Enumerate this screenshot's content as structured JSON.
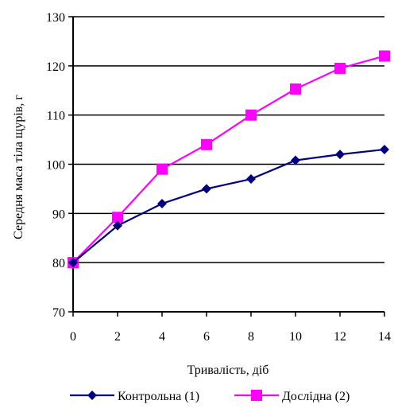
{
  "chart_data": {
    "type": "line",
    "title": "",
    "xlabel": "Тривалість, діб",
    "ylabel": "Середня маса тіла щурів, г",
    "x": [
      0,
      2,
      4,
      6,
      8,
      10,
      12,
      14
    ],
    "xlim": [
      0,
      14
    ],
    "ylim": [
      70,
      130
    ],
    "xticks": [
      "0",
      "2",
      "4",
      "6",
      "8",
      "10",
      "12",
      "14"
    ],
    "yticks": [
      "70",
      "80",
      "90",
      "100",
      "110",
      "120",
      "130"
    ],
    "grid": "horizontal",
    "legend_position": "bottom",
    "series": [
      {
        "name": "Контрольна (1)",
        "color": "#000080",
        "marker": "diamond",
        "values": [
          80,
          87.5,
          92,
          95,
          97,
          100.8,
          102,
          103
        ]
      },
      {
        "name": "Дослідна (2)",
        "color": "#ff00ff",
        "marker": "square",
        "values": [
          80,
          89.2,
          99,
          104,
          110,
          115.3,
          119.5,
          122
        ]
      }
    ]
  }
}
